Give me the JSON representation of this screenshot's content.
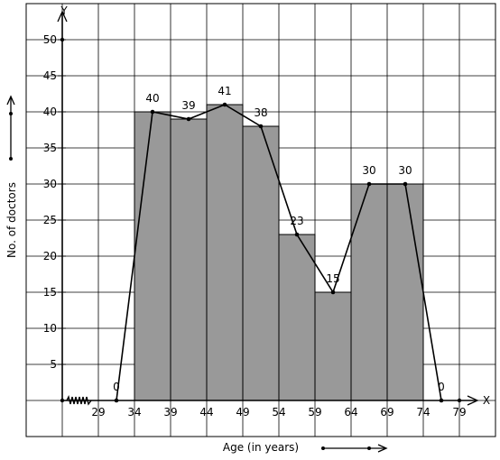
{
  "chart_data": {
    "type": "bar",
    "subtype": "histogram with frequency polygon",
    "axis_letters": {
      "x": "X",
      "y": "Y"
    },
    "xlabel": "Age (in years)",
    "ylabel": "No. of doctors",
    "x_ticks": [
      "29",
      "34",
      "39",
      "44",
      "49",
      "54",
      "59",
      "64",
      "69",
      "74",
      "79"
    ],
    "y_ticks": [
      "5",
      "10",
      "15",
      "20",
      "25",
      "30",
      "35",
      "40",
      "45",
      "50"
    ],
    "ylim": [
      0,
      50
    ],
    "grid": true,
    "axis_break_on_x": true,
    "classes": [
      "34-39",
      "39-44",
      "44-49",
      "49-54",
      "54-59",
      "59-64",
      "64-69",
      "69-74"
    ],
    "values": [
      40,
      39,
      41,
      38,
      23,
      15,
      30,
      30
    ],
    "polygon": {
      "x": [
        31.5,
        36.5,
        41.5,
        46.5,
        51.5,
        56.5,
        61.5,
        66.5,
        71.5,
        76.5
      ],
      "y": [
        0,
        40,
        39,
        41,
        38,
        23,
        15,
        30,
        30,
        0
      ],
      "labels": [
        "0",
        "40",
        "39",
        "41",
        "38",
        "23",
        "15",
        "30",
        "30",
        "0"
      ]
    },
    "colors": {
      "bar": "#999999",
      "grid": "#000000",
      "line": "#000000"
    }
  }
}
